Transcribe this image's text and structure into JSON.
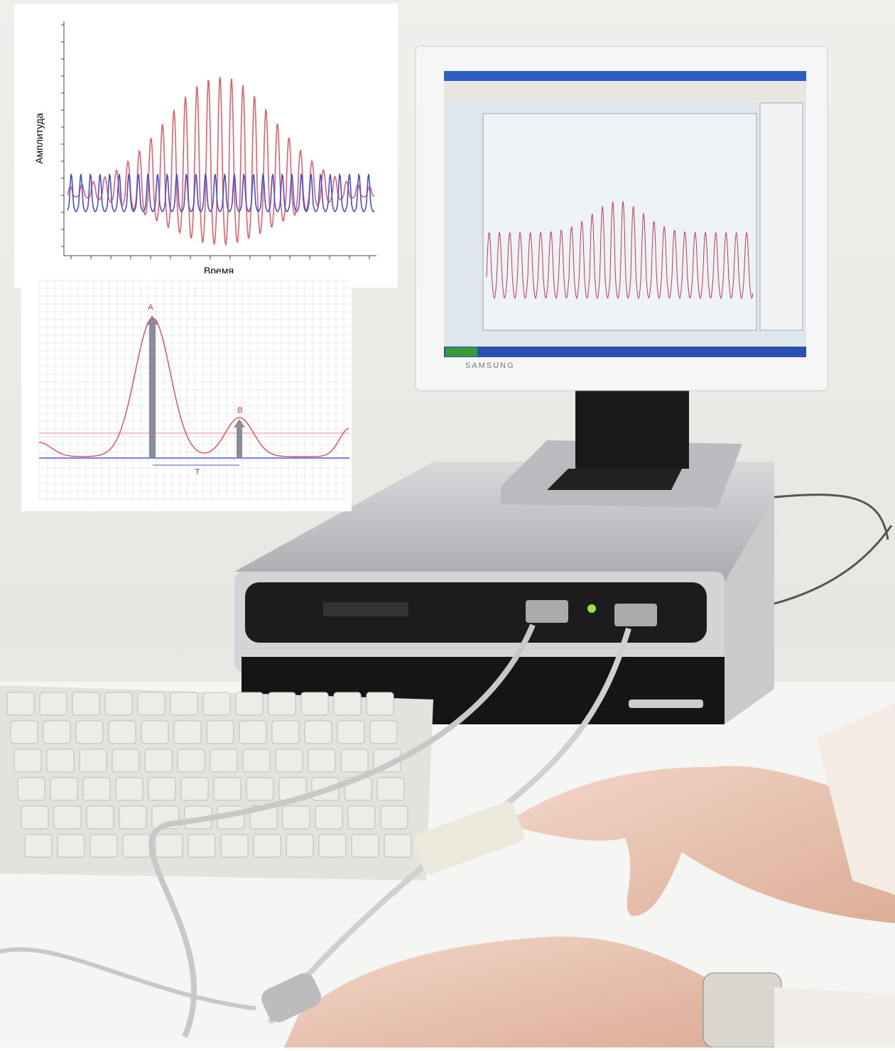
{
  "top_chart": {
    "y_label": "Амплитуда",
    "x_label": "Время"
  },
  "pulse_chart": {
    "peak_a": "A",
    "peak_b": "B",
    "interval": "T"
  },
  "monitor": {
    "brand": "SAMSUNG"
  }
}
